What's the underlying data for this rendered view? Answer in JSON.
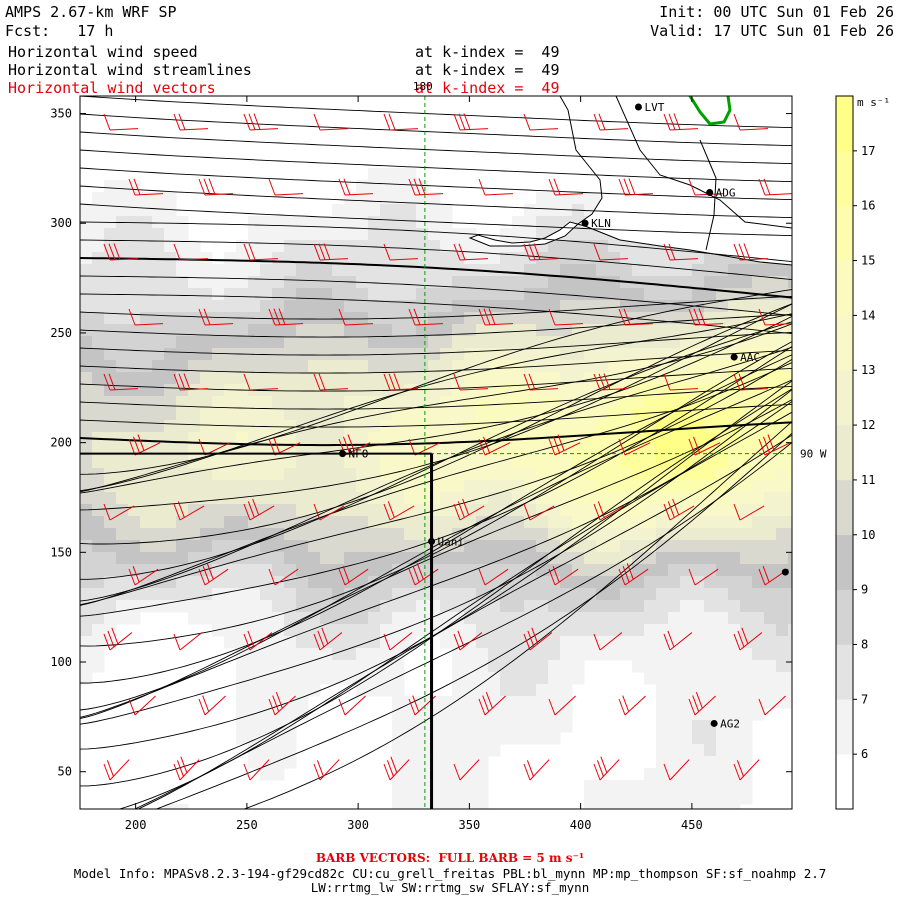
{
  "header": {
    "title": "AMPS 2.67-km WRF SP",
    "forecast": "Fcst:   17 h",
    "init": "Init: 00 UTC Sun 01 Feb 26",
    "valid": "Valid: 17 UTC Sun 01 Feb 26"
  },
  "fields": [
    {
      "name": "Horizontal wind speed",
      "level": "at k-index =  49",
      "color": "#000000"
    },
    {
      "name": "Horizontal wind streamlines",
      "level": "at k-index =  49",
      "color": "#000000"
    },
    {
      "name": "Horizontal wind vectors",
      "level": "at k-index =  49",
      "color": "#e8000b"
    }
  ],
  "footer": {
    "barb_note": "BARB VECTORS:  FULL BARB = 5 m s⁻¹",
    "model_info": "Model Info: MPASv8.2.3-194-gf29cd82c CU:cu_grell_freitas PBL:bl_mynn MP:mp_thompson SF:sf_noahmp 2.7",
    "model_info2": "LW:rrtmg_lw SW:rrtmg_sw SFLAY:sf_mynn"
  },
  "chart_data": {
    "type": "heatmap",
    "xlim": [
      175,
      495
    ],
    "ylim": [
      33,
      358
    ],
    "x_ticks": [
      200,
      250,
      300,
      350,
      400,
      450
    ],
    "y_ticks": [
      50,
      100,
      150,
      200,
      250,
      300,
      350
    ],
    "colorbar": {
      "unit": "m s⁻¹",
      "ticks": [
        6,
        7,
        8,
        9,
        10,
        11,
        12,
        13,
        14,
        15,
        16,
        17
      ],
      "range": [
        5,
        18
      ],
      "colors": [
        "#ffffff",
        "#f3f3f3",
        "#e3e3e3",
        "#d3d3d3",
        "#c4c4c4",
        "#d9d9cf",
        "#ebebcf",
        "#f3f3cf",
        "#f8f8c9",
        "#fbfbbf",
        "#fdfdaf",
        "#fefe9c",
        "#ffff88"
      ]
    },
    "grid_labels": [
      {
        "text": "180",
        "x": 330,
        "y": 358
      },
      {
        "text": "90 W",
        "x": 495,
        "y": 195
      }
    ],
    "stations": [
      {
        "name": "LVT",
        "x": 426,
        "y": 353
      },
      {
        "name": "ADG",
        "x": 458,
        "y": 314
      },
      {
        "name": "KLN",
        "x": 402,
        "y": 300
      },
      {
        "name": "AAC",
        "x": 469,
        "y": 239
      },
      {
        "name": "NFO",
        "x": 293,
        "y": 195
      },
      {
        "name": "Uani",
        "x": 333,
        "y": 155
      },
      {
        "name": "",
        "x": 492,
        "y": 141
      },
      {
        "name": "AG2",
        "x": 460,
        "y": 72
      }
    ]
  }
}
